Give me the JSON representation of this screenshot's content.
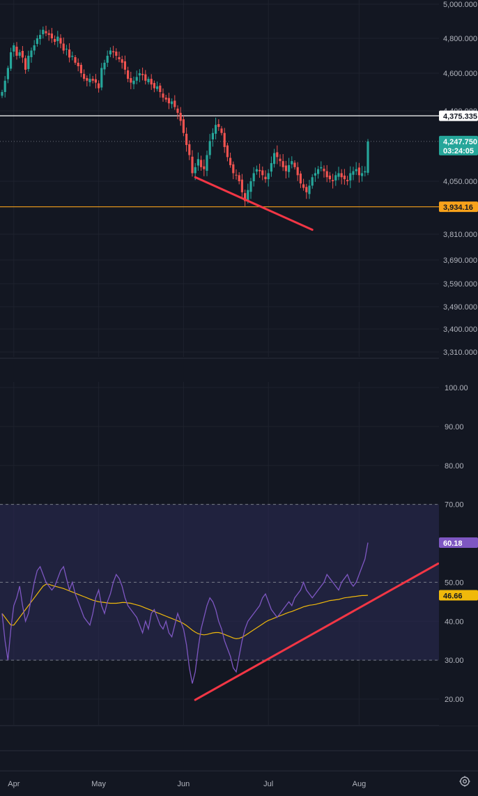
{
  "price_axis_ticks": [
    "5,000.000",
    "4,800.000",
    "4,600.000",
    "4,400.000",
    "4,050.000",
    "3,810.000",
    "3,690.000",
    "3,590.000",
    "3,490.000",
    "3,400.000",
    "3,310.000"
  ],
  "rsi_axis_ticks": [
    "100.00",
    "90.00",
    "80.00",
    "70.00",
    "50.00",
    "40.00",
    "30.00",
    "20.00"
  ],
  "time_axis_ticks": [
    "Apr",
    "May",
    "Jun",
    "Jul",
    "Aug"
  ],
  "badges": {
    "resistance_price": "4,375.335",
    "last_price": "4,247.750",
    "countdown": "03:24:05",
    "support_price": "3,934.16",
    "rsi_value": "60.18",
    "rsi_ma_value": "46.66"
  },
  "colors": {
    "background": "#131722",
    "grid": "#1e222d",
    "up": "#26a69a",
    "down": "#ef5350",
    "support_line": "#f7a21b",
    "resistance_line": "#ffffff",
    "trendline": "#f23645",
    "rsi_line": "#7e57c2",
    "rsi_ma_line": "#f0b90b",
    "rsi_band": "#2a2a52"
  },
  "icons": {
    "settings": "gear-icon"
  },
  "chart_data": [
    {
      "type": "candlestick",
      "x_unit": "trading day index (first day = 0)",
      "x_ticks": [
        {
          "label": "Apr",
          "x": 4
        },
        {
          "label": "May",
          "x": 33
        },
        {
          "label": "Jun",
          "x": 62
        },
        {
          "label": "Jul",
          "x": 91
        },
        {
          "label": "Aug",
          "x": 122
        }
      ],
      "y_axis": "price, non-linear scale",
      "y_ticks": [
        5000,
        4800,
        4600,
        4400,
        4050,
        3810,
        3690,
        3590,
        3490,
        3400,
        3310
      ],
      "close": [
        4500,
        4560,
        4630,
        4720,
        4760,
        4700,
        4720,
        4690,
        4620,
        4700,
        4730,
        4760,
        4800,
        4820,
        4850,
        4830,
        4820,
        4800,
        4780,
        4810,
        4770,
        4730,
        4740,
        4690,
        4700,
        4660,
        4640,
        4600,
        4570,
        4560,
        4570,
        4560,
        4550,
        4520,
        4630,
        4660,
        4700,
        4730,
        4720,
        4700,
        4680,
        4660,
        4620,
        4570,
        4550,
        4560,
        4580,
        4600,
        4590,
        4560,
        4570,
        4540,
        4520,
        4530,
        4500,
        4470,
        4460,
        4440,
        4450,
        4420,
        4390,
        4350,
        4290,
        4230,
        4180,
        4090,
        4120,
        4160,
        4120,
        4110,
        4180,
        4250,
        4290,
        4330,
        4320,
        4290,
        4220,
        4170,
        4130,
        4090,
        4080,
        4050,
        4000,
        3960,
        4010,
        4050,
        4090,
        4110,
        4100,
        4080,
        4060,
        4090,
        4140,
        4190,
        4170,
        4150,
        4120,
        4100,
        4130,
        4150,
        4120,
        4080,
        4040,
        4020,
        4000,
        4030,
        4070,
        4090,
        4110,
        4120,
        4100,
        4070,
        4060,
        4050,
        4080,
        4090,
        4070,
        4060,
        4050,
        4090,
        4100,
        4110,
        4080,
        4090,
        4100,
        4247.75
      ],
      "levels": {
        "resistance": 4375.335,
        "support": 3934.16
      }
    },
    {
      "type": "line",
      "name": "RSI",
      "y_range": [
        20,
        100
      ],
      "band": [
        30,
        70
      ],
      "midline": 50,
      "series": [
        {
          "name": "RSI",
          "values": [
            42,
            35,
            30,
            38,
            44,
            46,
            49,
            44,
            40,
            42,
            46,
            50,
            53,
            54,
            52,
            50,
            49,
            48,
            49,
            51,
            53,
            54,
            51,
            48,
            50,
            47,
            45,
            43,
            41,
            40,
            39,
            42,
            46,
            48,
            44,
            42,
            45,
            47,
            50,
            52,
            51,
            49,
            46,
            44,
            43,
            42,
            41,
            39,
            37,
            40,
            38,
            42,
            43,
            41,
            39,
            38,
            40,
            37,
            36,
            39,
            42,
            40,
            38,
            34,
            28,
            24,
            27,
            33,
            38,
            41,
            44,
            46,
            45,
            43,
            40,
            38,
            35,
            33,
            31,
            28,
            27,
            31,
            35,
            38,
            40,
            41,
            42,
            43,
            44,
            46,
            47,
            45,
            43,
            42,
            41,
            42,
            43,
            44,
            45,
            44,
            46,
            47,
            48,
            50,
            48,
            47,
            46,
            47,
            48,
            49,
            50,
            52,
            51,
            50,
            49,
            48,
            50,
            51,
            52,
            50,
            49,
            50,
            52,
            54,
            56,
            60.18
          ]
        },
        {
          "name": "RSI MA",
          "values": [
            42,
            41,
            40,
            39,
            39,
            40,
            41,
            42,
            43,
            44,
            45,
            46,
            47,
            48,
            49,
            49.5,
            49.5,
            49.2,
            49,
            48.8,
            48.6,
            48.4,
            48.1,
            47.8,
            47.5,
            47.2,
            46.9,
            46.6,
            46.3,
            46,
            45.7,
            45.4,
            45.2,
            45,
            44.9,
            44.8,
            44.7,
            44.6,
            44.6,
            44.6,
            44.7,
            44.8,
            44.8,
            44.7,
            44.6,
            44.4,
            44.2,
            44,
            43.7,
            43.4,
            43.1,
            42.8,
            42.5,
            42.2,
            41.9,
            41.6,
            41.3,
            41,
            40.7,
            40.4,
            40.1,
            39.8,
            39.4,
            38.9,
            38.3,
            37.7,
            37.2,
            36.8,
            36.6,
            36.5,
            36.6,
            36.8,
            37,
            37.1,
            37.1,
            36.9,
            36.6,
            36.3,
            36,
            35.7,
            35.5,
            35.6,
            35.9,
            36.3,
            36.8,
            37.3,
            37.8,
            38.3,
            38.8,
            39.3,
            39.8,
            40.2,
            40.5,
            40.8,
            41.1,
            41.4,
            41.7,
            42,
            42.3,
            42.5,
            42.8,
            43.1,
            43.4,
            43.7,
            43.9,
            44.1,
            44.2,
            44.3,
            44.5,
            44.7,
            44.9,
            45.1,
            45.3,
            45.4,
            45.5,
            45.6,
            45.8,
            46,
            46.1,
            46.2,
            46.3,
            46.4,
            46.5,
            46.6,
            46.6,
            46.66
          ]
        }
      ]
    }
  ]
}
